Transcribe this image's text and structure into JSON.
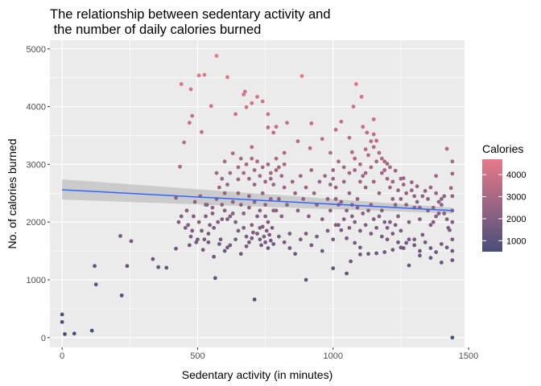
{
  "chart_data": {
    "type": "scatter",
    "title_lines": [
      "The relationship between sedentary activity and",
      " the number of daily calories burned"
    ],
    "xlabel": "Sedentary activity (in minutes)",
    "ylabel": "No. of calories burned",
    "xlim": [
      -45,
      1485
    ],
    "ylim": [
      -170,
      5150
    ],
    "x_ticks": [
      0,
      500,
      1000,
      1500
    ],
    "y_ticks": [
      0,
      1000,
      2000,
      3000,
      4000,
      5000
    ],
    "grid": true,
    "legend": {
      "title": "Calories",
      "position": "right",
      "breaks": [
        1000,
        2000,
        3000,
        4000
      ],
      "range": [
        500,
        4700
      ],
      "color_low": "#4A4F7A",
      "color_high": "#E8798A"
    },
    "trend_line": {
      "x": [
        0,
        1440
      ],
      "y": [
        2560,
        2200
      ],
      "color": "#3366FF",
      "band_color": "#C8C8C8",
      "band_upper": [
        2740,
        2250
      ],
      "band_lower": [
        2390,
        2150
      ]
    },
    "points": [
      [
        0,
        400
      ],
      [
        0,
        270
      ],
      [
        10,
        60
      ],
      [
        45,
        70
      ],
      [
        110,
        120
      ],
      [
        120,
        1240
      ],
      [
        125,
        920
      ],
      [
        215,
        1760
      ],
      [
        220,
        730
      ],
      [
        240,
        1240
      ],
      [
        255,
        1670
      ],
      [
        335,
        1360
      ],
      [
        355,
        1220
      ],
      [
        385,
        1210
      ],
      [
        420,
        1540
      ],
      [
        435,
        2960
      ],
      [
        440,
        4390
      ],
      [
        450,
        3380
      ],
      [
        470,
        3720
      ],
      [
        475,
        4300
      ],
      [
        505,
        4540
      ],
      [
        515,
        3560
      ],
      [
        525,
        4550
      ],
      [
        550,
        4010
      ],
      [
        570,
        4880
      ],
      [
        610,
        4510
      ],
      [
        640,
        3870
      ],
      [
        670,
        4210
      ],
      [
        675,
        4260
      ],
      [
        700,
        4060
      ],
      [
        720,
        4170
      ],
      [
        740,
        4090
      ],
      [
        760,
        3870
      ],
      [
        780,
        3550
      ],
      [
        830,
        3720
      ],
      [
        885,
        4530
      ],
      [
        915,
        3280
      ],
      [
        1075,
        4000
      ],
      [
        1085,
        4390
      ],
      [
        1105,
        4170
      ],
      [
        1150,
        3780
      ],
      [
        1150,
        3520
      ],
      [
        1160,
        3410
      ],
      [
        1420,
        3270
      ],
      [
        1440,
        3050
      ],
      [
        1440,
        2840
      ],
      [
        1440,
        0
      ],
      [
        1440,
        1340
      ],
      [
        1430,
        1860
      ],
      [
        1435,
        2590
      ],
      [
        565,
        1030
      ],
      [
        710,
        660
      ],
      [
        900,
        1000
      ],
      [
        1000,
        1200
      ],
      [
        1050,
        1110
      ],
      [
        1065,
        1320
      ],
      [
        1100,
        1560
      ],
      [
        1280,
        1250
      ],
      [
        1320,
        1420
      ],
      [
        1360,
        1380
      ],
      [
        1400,
        1300
      ],
      [
        480,
        3840
      ],
      [
        600,
        3050
      ],
      [
        630,
        3190
      ],
      [
        650,
        2740
      ],
      [
        680,
        3990
      ],
      [
        700,
        3300
      ],
      [
        760,
        3640
      ],
      [
        790,
        3650
      ],
      [
        820,
        3200
      ],
      [
        870,
        3400
      ],
      [
        920,
        3710
      ],
      [
        960,
        3440
      ],
      [
        990,
        3200
      ],
      [
        1010,
        3600
      ],
      [
        1030,
        3740
      ],
      [
        1060,
        3460
      ],
      [
        1070,
        3210
      ],
      [
        1120,
        3260
      ],
      [
        1130,
        3160
      ],
      [
        1180,
        3100
      ],
      [
        1200,
        3010
      ],
      [
        1230,
        2890
      ],
      [
        1260,
        2760
      ],
      [
        1290,
        2690
      ],
      [
        1310,
        2620
      ],
      [
        1340,
        2540
      ],
      [
        1380,
        2800
      ],
      [
        1400,
        2400
      ],
      [
        1380,
        2100
      ],
      [
        1360,
        1950
      ],
      [
        1330,
        1780
      ],
      [
        1300,
        1700
      ],
      [
        1270,
        1640
      ],
      [
        1250,
        1560
      ],
      [
        1220,
        1520
      ],
      [
        1190,
        1480
      ],
      [
        1160,
        1460
      ],
      [
        1130,
        1450
      ],
      [
        1100,
        1440
      ],
      [
        1080,
        1640
      ],
      [
        1050,
        1720
      ],
      [
        1030,
        1860
      ],
      [
        1010,
        1950
      ],
      [
        530,
        2100
      ],
      [
        540,
        1800
      ],
      [
        555,
        2250
      ],
      [
        560,
        1900
      ],
      [
        570,
        2400
      ],
      [
        585,
        1700
      ],
      [
        590,
        2050
      ],
      [
        600,
        2200
      ],
      [
        610,
        1560
      ],
      [
        620,
        2100
      ],
      [
        630,
        2350
      ],
      [
        640,
        2000
      ],
      [
        650,
        1850
      ],
      [
        660,
        2300
      ],
      [
        670,
        2150
      ],
      [
        680,
        1750
      ],
      [
        690,
        2450
      ],
      [
        700,
        1950
      ],
      [
        710,
        2650
      ],
      [
        720,
        2100
      ],
      [
        730,
        1900
      ],
      [
        740,
        2500
      ],
      [
        750,
        2300
      ],
      [
        760,
        2000
      ],
      [
        770,
        2750
      ],
      [
        780,
        2200
      ],
      [
        790,
        2900
      ],
      [
        800,
        2400
      ],
      [
        810,
        2100
      ],
      [
        820,
        2600
      ],
      [
        830,
        2300
      ],
      [
        840,
        1800
      ],
      [
        850,
        2700
      ],
      [
        860,
        2500
      ],
      [
        870,
        2200
      ],
      [
        880,
        2800
      ],
      [
        890,
        2400
      ],
      [
        900,
        2600
      ],
      [
        910,
        2100
      ],
      [
        920,
        2900
      ],
      [
        930,
        2500
      ],
      [
        940,
        2300
      ],
      [
        950,
        2700
      ],
      [
        960,
        2050
      ],
      [
        970,
        2800
      ],
      [
        980,
        2400
      ],
      [
        990,
        2200
      ],
      [
        1000,
        2900
      ],
      [
        1010,
        2600
      ],
      [
        1020,
        2300
      ],
      [
        1040,
        2700
      ],
      [
        1060,
        2500
      ],
      [
        1070,
        2100
      ],
      [
        1080,
        2900
      ],
      [
        1090,
        2400
      ],
      [
        1110,
        2800
      ],
      [
        1120,
        2600
      ],
      [
        1140,
        2300
      ],
      [
        1150,
        2700
      ],
      [
        1170,
        2500
      ],
      [
        1180,
        2200
      ],
      [
        1190,
        2900
      ],
      [
        1210,
        2600
      ],
      [
        1220,
        2400
      ],
      [
        1240,
        2100
      ],
      [
        1250,
        2750
      ],
      [
        1270,
        2300
      ],
      [
        1280,
        2000
      ],
      [
        1290,
        2550
      ],
      [
        1300,
        2250
      ],
      [
        1320,
        2050
      ],
      [
        1330,
        2450
      ],
      [
        1350,
        2200
      ],
      [
        1370,
        2000
      ],
      [
        1390,
        2350
      ],
      [
        1410,
        2150
      ],
      [
        1425,
        1900
      ],
      [
        1440,
        2000
      ],
      [
        1440,
        2200
      ],
      [
        1440,
        2450
      ],
      [
        1440,
        1700
      ],
      [
        1440,
        1500
      ],
      [
        720,
        1800
      ],
      [
        730,
        1700
      ],
      [
        735,
        1600
      ],
      [
        740,
        1920
      ],
      [
        745,
        1750
      ],
      [
        750,
        1650
      ],
      [
        755,
        1850
      ],
      [
        760,
        1550
      ],
      [
        765,
        1780
      ],
      [
        770,
        1680
      ],
      [
        775,
        1900
      ],
      [
        780,
        1620
      ],
      [
        700,
        1720
      ],
      [
        705,
        1820
      ],
      [
        690,
        1650
      ],
      [
        680,
        1580
      ],
      [
        670,
        1900
      ],
      [
        660,
        1450
      ],
      [
        640,
        1700
      ],
      [
        620,
        1600
      ],
      [
        600,
        1500
      ],
      [
        580,
        1620
      ],
      [
        560,
        1400
      ],
      [
        540,
        1650
      ],
      [
        520,
        1520
      ],
      [
        500,
        1700
      ],
      [
        480,
        1850
      ],
      [
        470,
        1600
      ],
      [
        455,
        1900
      ],
      [
        440,
        2100
      ],
      [
        430,
        2000
      ],
      [
        420,
        2420
      ],
      [
        460,
        2200
      ],
      [
        490,
        2350
      ],
      [
        510,
        2450
      ],
      [
        530,
        2300
      ],
      [
        800,
        1750
      ],
      [
        820,
        1650
      ],
      [
        840,
        1550
      ],
      [
        860,
        1450
      ],
      [
        880,
        1700
      ],
      [
        900,
        1800
      ],
      [
        920,
        1600
      ],
      [
        940,
        1750
      ],
      [
        960,
        1500
      ],
      [
        980,
        1850
      ],
      [
        1000,
        1700
      ],
      [
        1020,
        1950
      ],
      [
        1040,
        2050
      ],
      [
        1060,
        1900
      ],
      [
        1080,
        2000
      ],
      [
        1100,
        1850
      ],
      [
        1120,
        1950
      ],
      [
        1140,
        1800
      ],
      [
        1160,
        1900
      ],
      [
        1180,
        1750
      ],
      [
        1200,
        1700
      ],
      [
        1220,
        1800
      ],
      [
        1240,
        1650
      ],
      [
        1260,
        1550
      ],
      [
        1280,
        1700
      ],
      [
        1300,
        1600
      ],
      [
        1320,
        1500
      ],
      [
        1340,
        1650
      ],
      [
        1360,
        1550
      ],
      [
        1380,
        1480
      ],
      [
        1400,
        1620
      ],
      [
        1420,
        1560
      ],
      [
        1200,
        1900
      ],
      [
        1210,
        2000
      ],
      [
        1230,
        1950
      ],
      [
        1250,
        1850
      ],
      [
        1150,
        2050
      ],
      [
        1170,
        2100
      ],
      [
        1190,
        2000
      ],
      [
        1110,
        2150
      ],
      [
        1130,
        2200
      ],
      [
        1090,
        2250
      ],
      [
        1070,
        2300
      ],
      [
        1050,
        2200
      ],
      [
        1030,
        2350
      ],
      [
        1010,
        2400
      ],
      [
        1100,
        2700
      ],
      [
        1120,
        2850
      ],
      [
        1140,
        2950
      ],
      [
        1160,
        3050
      ],
      [
        1180,
        2850
      ],
      [
        1200,
        2750
      ],
      [
        1100,
        3000
      ],
      [
        1080,
        3100
      ],
      [
        1060,
        2850
      ],
      [
        1040,
        2950
      ],
      [
        1020,
        3050
      ],
      [
        1000,
        2750
      ],
      [
        990,
        2650
      ],
      [
        1150,
        3300
      ],
      [
        1170,
        3200
      ],
      [
        1190,
        3050
      ],
      [
        1210,
        2950
      ],
      [
        1140,
        3400
      ],
      [
        1125,
        3550
      ],
      [
        1110,
        3650
      ],
      [
        650,
        2950
      ],
      [
        660,
        3100
      ],
      [
        670,
        2850
      ],
      [
        680,
        3000
      ],
      [
        690,
        2750
      ],
      [
        700,
        3100
      ],
      [
        710,
        2900
      ],
      [
        720,
        3050
      ],
      [
        730,
        2800
      ],
      [
        740,
        2950
      ],
      [
        750,
        2700
      ],
      [
        760,
        3000
      ],
      [
        770,
        2850
      ],
      [
        780,
        2650
      ],
      [
        790,
        3100
      ],
      [
        800,
        2950
      ],
      [
        810,
        2800
      ],
      [
        820,
        3000
      ],
      [
        620,
        2850
      ],
      [
        610,
        2650
      ],
      [
        600,
        2500
      ],
      [
        590,
        2750
      ],
      [
        580,
        2600
      ],
      [
        570,
        2850
      ],
      [
        690,
        2250
      ],
      [
        710,
        2350
      ],
      [
        730,
        2200
      ],
      [
        750,
        2100
      ],
      [
        770,
        2400
      ],
      [
        790,
        2200
      ],
      [
        650,
        2500
      ],
      [
        630,
        2150
      ],
      [
        610,
        2050
      ],
      [
        590,
        2300
      ],
      [
        575,
        2000
      ],
      [
        555,
        2150
      ],
      [
        545,
        1950
      ],
      [
        535,
        2300
      ],
      [
        525,
        1700
      ],
      [
        515,
        1850
      ],
      [
        505,
        2000
      ],
      [
        495,
        1650
      ],
      [
        485,
        2100
      ],
      [
        475,
        1750
      ],
      [
        465,
        1950
      ],
      [
        1350,
        2400
      ],
      [
        1360,
        2600
      ],
      [
        1370,
        2250
      ],
      [
        1380,
        2500
      ],
      [
        1390,
        2150
      ],
      [
        1400,
        2300
      ],
      [
        1410,
        2450
      ],
      [
        1420,
        2050
      ],
      [
        1270,
        2500
      ],
      [
        1260,
        2650
      ],
      [
        1250,
        2400
      ],
      [
        1240,
        2550
      ],
      [
        1230,
        2300
      ],
      [
        1220,
        2700
      ],
      [
        1300,
        2450
      ],
      [
        1310,
        2350
      ],
      [
        1320,
        2250
      ]
    ]
  }
}
